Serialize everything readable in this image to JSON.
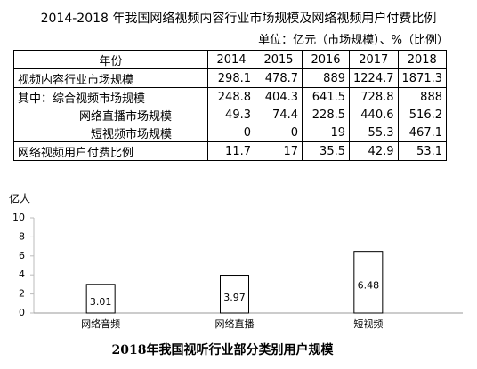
{
  "table": {
    "title": "2014-2018 年我国网络视频内容行业市场规模及网络视频用户付费比例",
    "unit": "单位：亿元（市场规模）、%（比例）",
    "header": [
      "年份",
      "2014",
      "2015",
      "2016",
      "2017",
      "2018"
    ],
    "rows": [
      [
        "视频内容行业市场规模",
        298.1,
        478.7,
        889,
        1224.7,
        1871.3
      ],
      [
        "其中：综合视频市场规模",
        248.8,
        404.3,
        641.5,
        728.8,
        888
      ],
      [
        "网络直播市场规模",
        49.3,
        74.4,
        228.5,
        440.6,
        516.2
      ],
      [
        "短视频市场规模",
        0,
        0,
        19,
        55.3,
        467.1
      ],
      [
        "网络视频用户付费比例",
        11.7,
        17,
        35.5,
        42.9,
        53.1
      ]
    ]
  },
  "chart_data": {
    "type": "bar",
    "title": "2018年我国视听行业部分类别用户规模",
    "y_label": "亿人",
    "categories": [
      "网络音频",
      "网络直播",
      "短视频"
    ],
    "values": [
      3.01,
      3.97,
      6.48
    ],
    "color": "#ffffff",
    "ylim": [
      0,
      10
    ],
    "yticks": [
      0,
      2,
      4,
      6,
      8,
      10
    ],
    "grid": false
  }
}
